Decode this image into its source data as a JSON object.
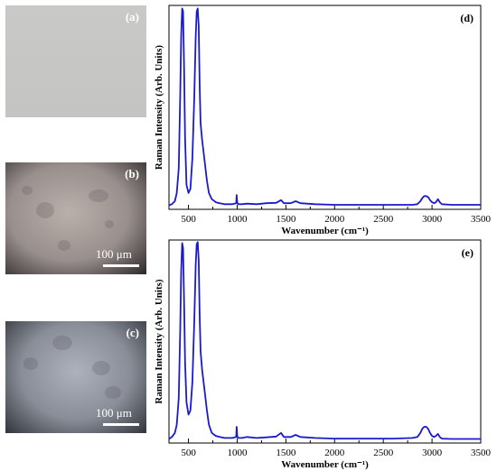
{
  "photos": [
    {
      "label": "(a)",
      "scalebar": ""
    },
    {
      "label": "(b)",
      "scalebar": "100 μm"
    },
    {
      "label": "(c)",
      "scalebar": "100 μm"
    }
  ],
  "chart_data": [
    {
      "type": "line",
      "panel_label": "(d)",
      "xlabel": "Wavenumber (cm⁻¹)",
      "ylabel": "Raman Intensity (Arb. Units)",
      "xlim": [
        300,
        3500
      ],
      "xticks": [
        500,
        1000,
        1500,
        2000,
        2500,
        3000,
        3500
      ],
      "yticks_shown": false,
      "color": "#1a1acc",
      "series": [
        {
          "x": [
            300,
            330,
            360,
            380,
            400,
            415,
            425,
            435,
            445,
            455,
            465,
            480,
            500,
            520,
            540,
            560,
            575,
            585,
            595,
            605,
            615,
            625,
            640,
            655,
            670,
            690,
            710,
            740,
            780,
            820,
            870,
            950,
            990,
            995,
            1000,
            1005,
            1010,
            1050,
            1100,
            1200,
            1300,
            1400,
            1450,
            1480,
            1550,
            1600,
            1650,
            1800,
            2000,
            2200,
            2400,
            2600,
            2800,
            2850,
            2880,
            2900,
            2920,
            2940,
            2960,
            2980,
            3000,
            3020,
            3040,
            3060,
            3080,
            3100,
            3200,
            3350,
            3500
          ],
          "y": [
            0.02,
            0.025,
            0.04,
            0.08,
            0.2,
            0.55,
            0.85,
            0.985,
            0.97,
            0.7,
            0.35,
            0.12,
            0.08,
            0.1,
            0.25,
            0.55,
            0.85,
            0.97,
            0.985,
            0.9,
            0.6,
            0.42,
            0.34,
            0.28,
            0.22,
            0.14,
            0.08,
            0.05,
            0.035,
            0.03,
            0.025,
            0.025,
            0.03,
            0.07,
            0.035,
            0.03,
            0.025,
            0.025,
            0.028,
            0.025,
            0.03,
            0.032,
            0.045,
            0.03,
            0.03,
            0.04,
            0.03,
            0.025,
            0.022,
            0.022,
            0.022,
            0.022,
            0.022,
            0.025,
            0.04,
            0.055,
            0.065,
            0.065,
            0.06,
            0.045,
            0.035,
            0.03,
            0.035,
            0.05,
            0.035,
            0.025,
            0.022,
            0.022,
            0.022
          ]
        }
      ]
    },
    {
      "type": "line",
      "panel_label": "(e)",
      "xlabel": "Wavenumber (cm⁻¹)",
      "ylabel": "Raman Intensity (Arb. Units)",
      "xlim": [
        300,
        3500
      ],
      "xticks": [
        500,
        1000,
        1500,
        2000,
        2500,
        3000,
        3500
      ],
      "yticks_shown": false,
      "color": "#1a1acc",
      "series": [
        {
          "x": [
            300,
            330,
            360,
            380,
            400,
            415,
            425,
            435,
            445,
            455,
            465,
            480,
            500,
            520,
            540,
            560,
            575,
            585,
            595,
            605,
            615,
            625,
            640,
            655,
            670,
            690,
            710,
            740,
            780,
            820,
            870,
            950,
            990,
            995,
            1000,
            1005,
            1010,
            1050,
            1100,
            1200,
            1300,
            1400,
            1450,
            1480,
            1550,
            1600,
            1650,
            1800,
            2000,
            2200,
            2400,
            2600,
            2800,
            2850,
            2880,
            2900,
            2920,
            2940,
            2960,
            2980,
            3000,
            3020,
            3040,
            3060,
            3080,
            3100,
            3200,
            3350,
            3500
          ],
          "y": [
            0.02,
            0.03,
            0.05,
            0.09,
            0.22,
            0.55,
            0.85,
            0.985,
            0.96,
            0.7,
            0.4,
            0.2,
            0.14,
            0.16,
            0.3,
            0.6,
            0.88,
            0.98,
            0.99,
            0.9,
            0.62,
            0.45,
            0.36,
            0.3,
            0.24,
            0.16,
            0.09,
            0.05,
            0.035,
            0.03,
            0.025,
            0.025,
            0.03,
            0.08,
            0.035,
            0.03,
            0.025,
            0.025,
            0.03,
            0.025,
            0.028,
            0.032,
            0.05,
            0.03,
            0.03,
            0.04,
            0.03,
            0.025,
            0.022,
            0.022,
            0.022,
            0.022,
            0.025,
            0.03,
            0.05,
            0.07,
            0.08,
            0.08,
            0.07,
            0.05,
            0.035,
            0.03,
            0.035,
            0.045,
            0.03,
            0.022,
            0.02,
            0.02,
            0.02
          ]
        }
      ]
    }
  ]
}
